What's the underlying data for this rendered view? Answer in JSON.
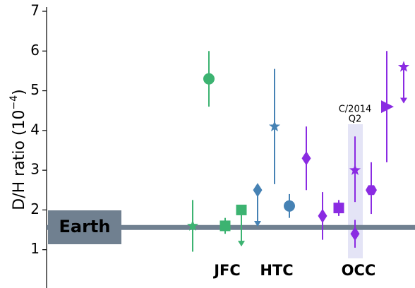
{
  "chart_data": {
    "type": "scatter",
    "ylabel": [
      "D/H ratio (10",
      "−4",
      ")"
    ],
    "ylim": [
      0,
      7
    ],
    "yticks": [
      1,
      2,
      3,
      4,
      5,
      6,
      7
    ],
    "earth": {
      "label": "Earth",
      "value": 1.56,
      "color": "#708090"
    },
    "groups": [
      "JFC",
      "HTC",
      "OCC"
    ],
    "annotation": [
      "C/2014",
      "Q2"
    ],
    "points": [
      {
        "group": 0,
        "marker": "star",
        "color": "#3cb371",
        "value": 1.6,
        "low": 0.95,
        "high": 2.25,
        "upper_limit": false
      },
      {
        "group": 0,
        "marker": "circle",
        "color": "#3cb371",
        "value": 5.3,
        "low": 4.6,
        "high": 6.0,
        "upper_limit": false
      },
      {
        "group": 0,
        "marker": "square",
        "color": "#3cb371",
        "value": 1.6,
        "low": 1.4,
        "high": 1.8,
        "upper_limit": false
      },
      {
        "group": 0,
        "marker": "square",
        "color": "#3cb371",
        "value": 2.0,
        "low": 1.1,
        "high": 2.0,
        "upper_limit": true
      },
      {
        "group": 1,
        "marker": "diamond",
        "color": "#4682b4",
        "value": 2.5,
        "low": 1.6,
        "high": 2.5,
        "upper_limit": true
      },
      {
        "group": 1,
        "marker": "star",
        "color": "#4682b4",
        "value": 4.1,
        "low": 2.65,
        "high": 5.55,
        "upper_limit": false
      },
      {
        "group": 1,
        "marker": "circle",
        "color": "#4682b4",
        "value": 2.1,
        "low": 1.8,
        "high": 2.4,
        "upper_limit": false
      },
      {
        "group": 2,
        "marker": "diamond",
        "color": "#8a2be2",
        "value": 3.3,
        "low": 2.5,
        "high": 4.1,
        "upper_limit": false
      },
      {
        "group": 2,
        "marker": "diamond",
        "color": "#8a2be2",
        "value": 1.85,
        "low": 1.25,
        "high": 2.45,
        "upper_limit": false
      },
      {
        "group": 2,
        "marker": "square",
        "color": "#8a2be2",
        "value": 2.05,
        "low": 1.85,
        "high": 2.25,
        "upper_limit": false
      },
      {
        "group": 2,
        "marker": "star",
        "color": "#8a2be2",
        "value": 3.0,
        "low": 2.2,
        "high": 3.85,
        "upper_limit": false
      },
      {
        "group": 2,
        "marker": "diamond",
        "color": "#8a2be2",
        "value": 1.4,
        "low": 1.05,
        "high": 1.75,
        "upper_limit": false
      },
      {
        "group": 2,
        "marker": "hexagon",
        "color": "#8a2be2",
        "value": 2.5,
        "low": 1.9,
        "high": 3.2,
        "upper_limit": false
      },
      {
        "group": 2,
        "marker": "triangle-right",
        "color": "#8a2be2",
        "value": 4.6,
        "low": 3.2,
        "high": 6.0,
        "upper_limit": false
      },
      {
        "group": 2,
        "marker": "star",
        "color": "#8a2be2",
        "value": 5.6,
        "low": 4.7,
        "high": 5.6,
        "upper_limit": true
      }
    ]
  }
}
